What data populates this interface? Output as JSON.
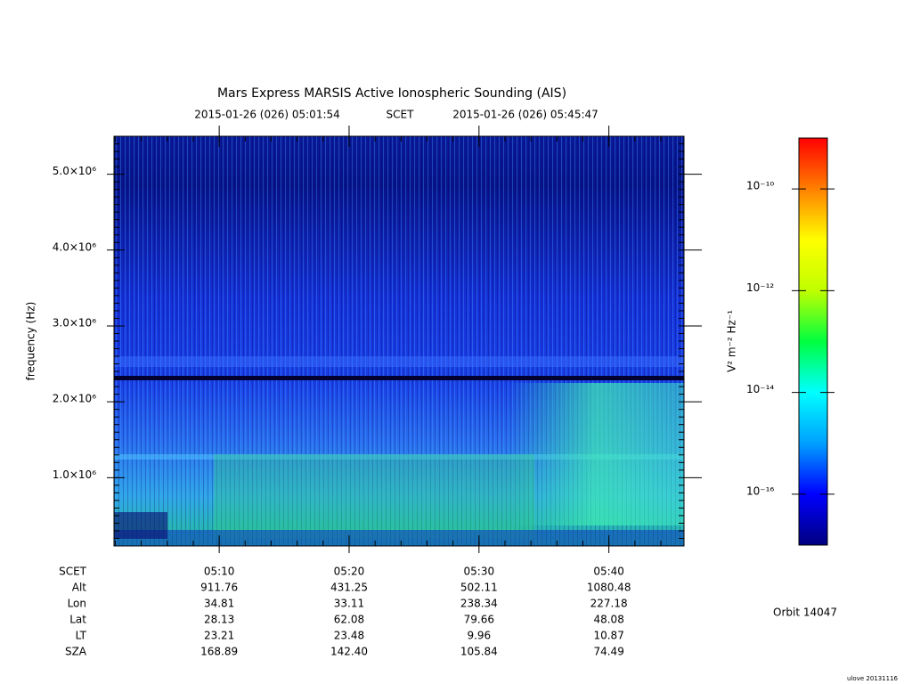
{
  "chart_data": {
    "type": "spectrogram",
    "title": "Mars Express MARSIS Active Ionospheric Sounding (AIS)",
    "start_time": "2015-01-26 (026) 05:01:54",
    "time_system": "SCET",
    "end_time": "2015-01-26 (026) 05:45:47",
    "ylabel": "frequency (Hz)",
    "ylim": [
      100000,
      5500000
    ],
    "yticks": [
      {
        "value": 1000000,
        "label": "1.0×10⁶"
      },
      {
        "value": 2000000,
        "label": "2.0×10⁶"
      },
      {
        "value": 3000000,
        "label": "3.0×10⁶"
      },
      {
        "value": 4000000,
        "label": "4.0×10⁶"
      },
      {
        "value": 5000000,
        "label": "5.0×10⁶"
      }
    ],
    "xticks": [
      "05:10",
      "05:20",
      "05:30",
      "05:40"
    ],
    "ephemeris": {
      "labels": [
        "SCET",
        "Alt",
        "Lon",
        "Lat",
        "LT",
        "SZA"
      ],
      "rows": [
        [
          "911.76",
          "431.25",
          "502.11",
          "1080.48"
        ],
        [
          "34.81",
          "33.11",
          "238.34",
          "227.18"
        ],
        [
          "28.13",
          "62.08",
          "79.66",
          "48.08"
        ],
        [
          "23.21",
          "23.48",
          "9.96",
          "10.87"
        ],
        [
          "168.89",
          "142.40",
          "105.84",
          "74.49"
        ]
      ]
    },
    "colorbar": {
      "label": "V² m⁻² Hz⁻¹",
      "log_scale": true,
      "zlim": [
        1e-17,
        1e-09
      ],
      "ticks": [
        {
          "value": 1e-10,
          "label": "10⁻¹⁰"
        },
        {
          "value": 1e-12,
          "label": "10⁻¹²"
        },
        {
          "value": 1e-14,
          "label": "10⁻¹⁴"
        },
        {
          "value": 1e-16,
          "label": "10⁻¹⁶"
        }
      ],
      "colors": [
        "#000080",
        "#0000ff",
        "#00a0ff",
        "#00ffff",
        "#00ff40",
        "#c0ff00",
        "#ffff00",
        "#ff8000",
        "#ff0000"
      ]
    },
    "orbit": "Orbit 14047",
    "footer": "ulove 20131116"
  }
}
